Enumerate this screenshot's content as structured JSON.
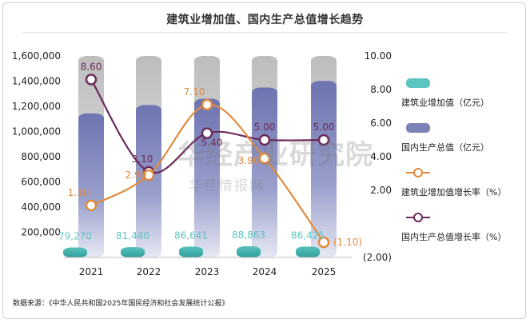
{
  "title": "建筑业增加值、国内生产总值增长趋势",
  "source": "数据来源：《中华人民共和国2025年国民经济和社会发展统计公报》",
  "watermark": {
    "main": "华经产业研究院",
    "sub": "华经情报网"
  },
  "colors": {
    "construction_bar": "#5cc5c0",
    "gdp_bar": "#7b82b8",
    "bar_shadow": "#c8c8c8",
    "construction_rate_line": "#e08a3c",
    "gdp_rate_line": "#6b2a5a",
    "construction_label": "#5cc5c0",
    "construction_rate_label": "#e08a3c",
    "gdp_rate_label": "#6b2a5a"
  },
  "chart_data": {
    "type": "bar",
    "categories": [
      "2021",
      "2022",
      "2023",
      "2024",
      "2025"
    ],
    "left_axis": {
      "ticks": [
        "200,000",
        "400,000",
        "600,000",
        "800,000",
        "1,000,000",
        "1,200,000",
        "1,400,000",
        "1,600,000"
      ],
      "tick_values": [
        200000,
        400000,
        600000,
        800000,
        1000000,
        1200000,
        1400000,
        1600000
      ],
      "range": [
        0,
        1600000
      ]
    },
    "right_axis": {
      "ticks": [
        "(2.00)",
        "2.00",
        "4.00",
        "6.00",
        "8.00",
        "10.00"
      ],
      "tick_values": [
        -2,
        2,
        4,
        6,
        8,
        10
      ],
      "range": [
        -2,
        10
      ]
    },
    "series": [
      {
        "name": "建筑业增加值（亿元）",
        "kind": "bar",
        "axis": "left",
        "values": [
          79270,
          81440,
          86641,
          88863,
          86425
        ],
        "labels": [
          "79,270",
          "81,440",
          "86,641",
          "88,863",
          "86,425"
        ]
      },
      {
        "name": "国内生产总值（亿元）",
        "kind": "bar",
        "axis": "left",
        "values": [
          1143670,
          1210207,
          1260582,
          1349084,
          1401879
        ]
      },
      {
        "name": "建筑业增加值增长率（%）",
        "kind": "line",
        "axis": "right",
        "values": [
          1.1,
          2.9,
          7.1,
          3.9,
          -1.1
        ],
        "labels": [
          "1.10",
          "2.90",
          "7.10",
          "3.90",
          "(1.10)"
        ]
      },
      {
        "name": "国内生产总值增长率（%）",
        "kind": "line",
        "axis": "right",
        "values": [
          8.6,
          3.1,
          5.4,
          5.0,
          5.0
        ],
        "labels": [
          "8.60",
          "3.10",
          "5.40",
          "5.00",
          "5.00"
        ]
      }
    ],
    "bar_background_max": 1600000,
    "grid": false,
    "legend_position": "right"
  }
}
